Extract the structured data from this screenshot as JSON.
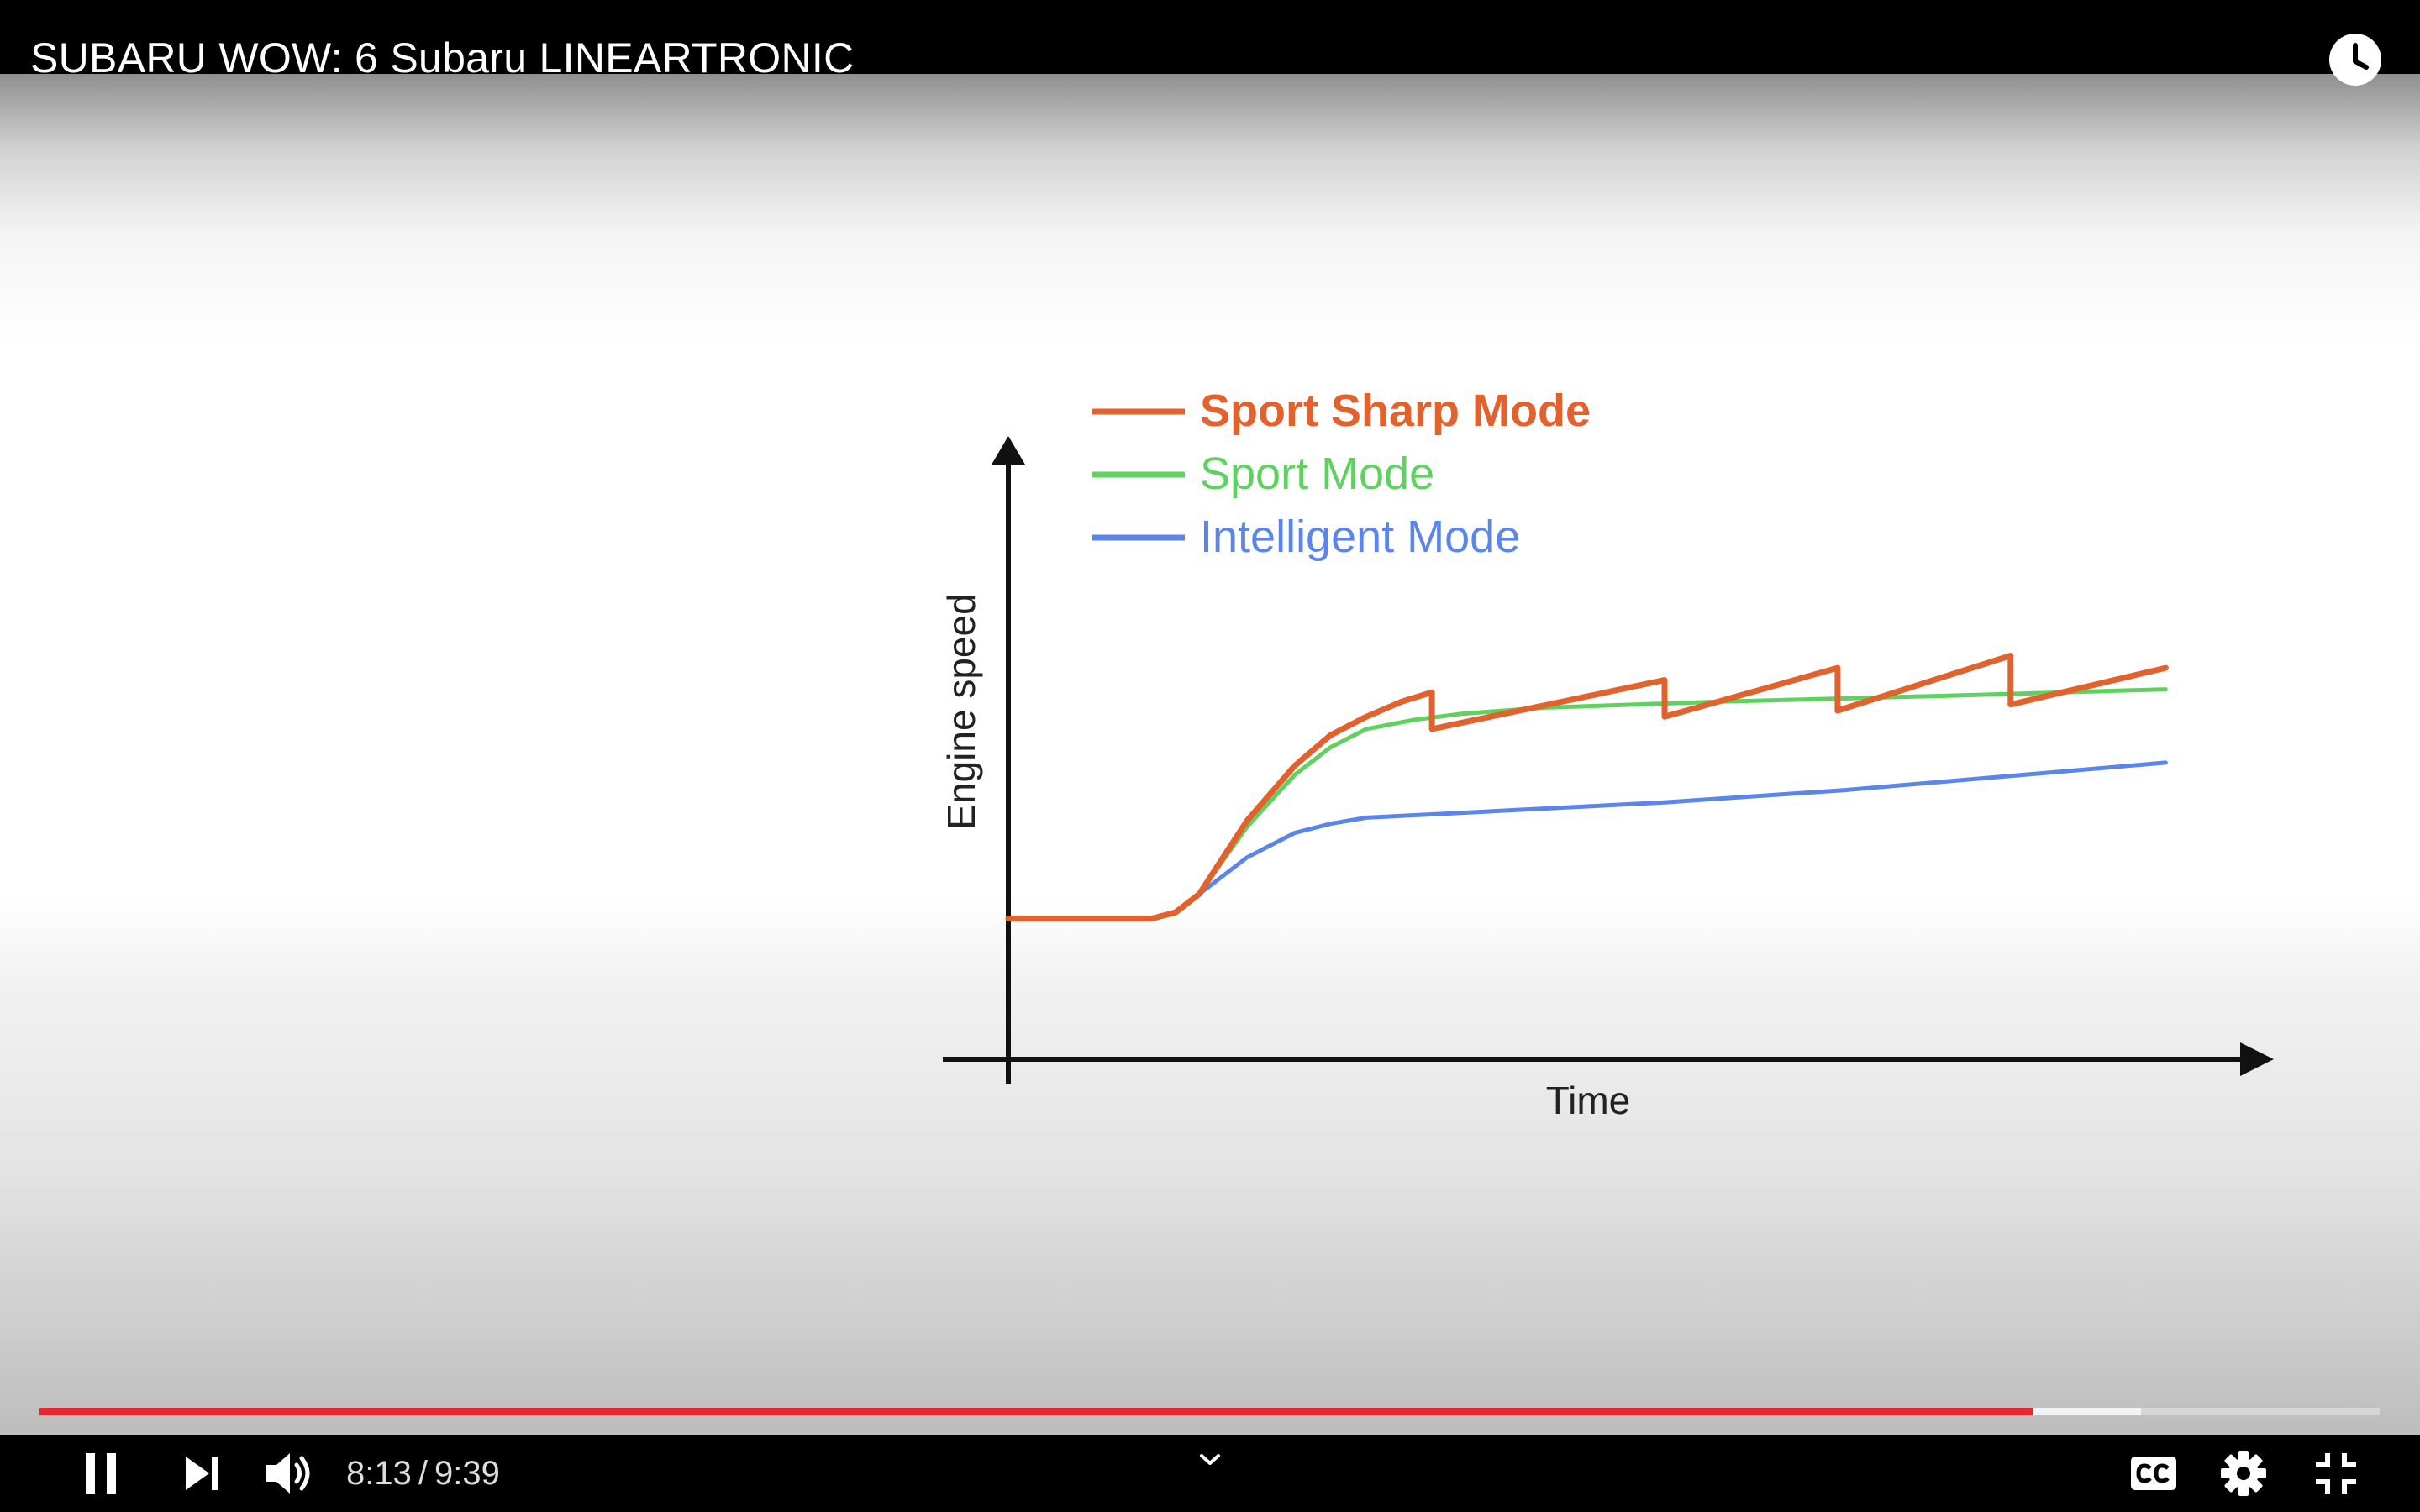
{
  "player": {
    "title": "SUBARU WOW: 6 Subaru LINEARTRONIC",
    "watch_later_icon": "clock-icon",
    "current_time": "8:13",
    "duration": "9:39",
    "time_separator": "/",
    "progress_played_fraction": 0.852,
    "progress_buffered_fraction": 0.898,
    "accent_color": "#e8262e",
    "controls": {
      "play_pause_icon": "pause-icon",
      "next_icon": "skip-next-icon",
      "volume_icon": "volume-high-icon",
      "chapters_icon": "chevron-down-icon",
      "captions_icon": "closed-captions-icon",
      "settings_icon": "gear-icon",
      "fullscreen_icon": "exit-fullscreen-icon"
    }
  },
  "chart_data": {
    "type": "line",
    "title": "",
    "xlabel": "Time",
    "ylabel": "Engine speed",
    "axis_ticks": false,
    "grid": false,
    "legend_position": "top-left",
    "xlim": [
      0,
      100
    ],
    "ylim": [
      0,
      100
    ],
    "series": [
      {
        "name": "Sport Sharp Mode",
        "color": "#e2622e",
        "x": [
          0,
          12,
          14,
          16,
          20,
          24,
          27,
          30,
          33,
          35.5,
          35.5,
          55,
          55,
          69.5,
          69.5,
          84,
          84,
          97
        ],
        "y": [
          23,
          23,
          24,
          27,
          39,
          48,
          53,
          56,
          58.5,
          60,
          54,
          62,
          56,
          64,
          57,
          66,
          58,
          64
        ]
      },
      {
        "name": "Sport Mode",
        "color": "#5fd15f",
        "x": [
          0,
          12,
          14,
          16,
          20,
          24,
          27,
          30,
          34,
          38,
          45,
          60,
          80,
          97
        ],
        "y": [
          23,
          23,
          24,
          27,
          38,
          46.5,
          51,
          54,
          55.5,
          56.5,
          57.5,
          58.5,
          59.5,
          60.5
        ]
      },
      {
        "name": "Intelligent Mode",
        "color": "#5b85e8",
        "x": [
          0,
          12,
          14,
          16,
          20,
          24,
          27,
          30,
          40,
          55,
          70,
          85,
          97
        ],
        "y": [
          23,
          23,
          24,
          27,
          33,
          37,
          38.5,
          39.5,
          40.5,
          42,
          44,
          46.5,
          48.5
        ]
      }
    ]
  }
}
